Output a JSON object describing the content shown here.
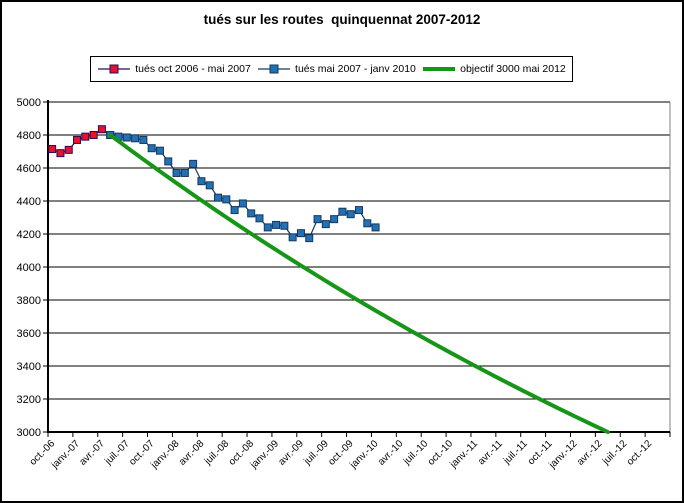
{
  "title": "tués sur les routes  quinquennat 2007-2012",
  "legend": {
    "position": "top",
    "items": [
      {
        "label": "tués oct 2006 - mai 2007",
        "marker": "square",
        "icon_name": "red-square-marker-icon",
        "color": "#e8112d",
        "line_color": "#2d0a57"
      },
      {
        "label": "tués mai 2007 - janv 2010",
        "marker": "square",
        "icon_name": "blue-square-marker-icon",
        "color": "#2171b5",
        "line_color": "#17375e"
      },
      {
        "label": "objectif 3000 mai 2012",
        "marker": "line",
        "icon_name": "green-line-icon",
        "color": "#169616"
      }
    ]
  },
  "chart_data": {
    "type": "line",
    "title": "tués sur les routes  quinquennat 2007-2012",
    "xlabel": "",
    "ylabel": "",
    "ylim": [
      3000,
      5000
    ],
    "y_ticks": [
      5000,
      4800,
      4600,
      4400,
      4200,
      4000,
      3800,
      3600,
      3400,
      3200,
      3000
    ],
    "grid": "horizontal",
    "legend_position": "top",
    "x_axis_months_start": "oct-06",
    "x_axis_months_count": 75,
    "x_tick_labels": [
      "oct.-06",
      "janv.-07",
      "avr.-07",
      "juil.-07",
      "oct.-07",
      "janv.-08",
      "avr.-08",
      "juil.-08",
      "oct.-08",
      "janv.-09",
      "avr.-09",
      "juil.-09",
      "oct.-09",
      "janv.-10",
      "avr.-10",
      "juil.-10",
      "oct.-10",
      "janv.-11",
      "avr.-11",
      "juil.-11",
      "oct.-11",
      "janv.-12",
      "avr.-12",
      "juil.-12",
      "oct.-12"
    ],
    "series": [
      {
        "name": "tués oct 2006 - mai 2007",
        "kind": "line+markers",
        "color": "#e8112d",
        "line_color": "#2d0a57",
        "start_month_index": 0,
        "months": [
          "oct-06",
          "nov-06",
          "déc-06",
          "janv-07",
          "févr-07",
          "mars-07",
          "avr-07",
          "mai-07"
        ],
        "values": [
          4715,
          4690,
          4710,
          4770,
          4790,
          4800,
          4835,
          4800
        ]
      },
      {
        "name": "tués mai 2007 - janv 2010",
        "kind": "line+markers",
        "color": "#2171b5",
        "line_color": "#17375e",
        "start_month_index": 7,
        "months": [
          "mai-07",
          "juin-07",
          "juil-07",
          "août-07",
          "sept-07",
          "oct-07",
          "nov-07",
          "déc-07",
          "janv-08",
          "févr-08",
          "mars-08",
          "avr-08",
          "mai-08",
          "juin-08",
          "juil-08",
          "août-08",
          "sept-08",
          "oct-08",
          "nov-08",
          "déc-08",
          "janv-09",
          "févr-09",
          "mars-09",
          "avr-09",
          "mai-09",
          "juin-09",
          "juil-09",
          "août-09",
          "sept-09",
          "oct-09",
          "nov-09",
          "déc-09",
          "janv-10"
        ],
        "values": [
          4800,
          4790,
          4785,
          4780,
          4770,
          4720,
          4705,
          4640,
          4570,
          4570,
          4625,
          4520,
          4495,
          4420,
          4410,
          4345,
          4385,
          4325,
          4295,
          4240,
          4255,
          4250,
          4180,
          4205,
          4175,
          4290,
          4260,
          4290,
          4335,
          4320,
          4345,
          4265,
          4240
        ]
      },
      {
        "name": "objectif 3000 mai 2012",
        "kind": "thick-line",
        "shape": "exponential",
        "color": "#169616",
        "start_month_index": 7,
        "end_month_index": 67,
        "start_value": 4800,
        "end_value": 3000,
        "start_label": "mai-07",
        "end_label": "mai-12"
      }
    ]
  }
}
